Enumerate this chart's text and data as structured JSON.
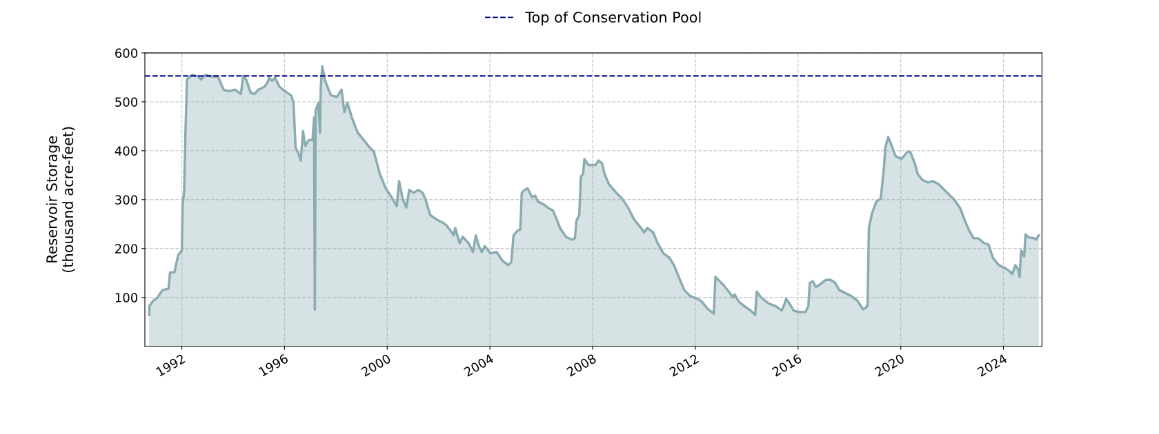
{
  "chart_data": {
    "type": "area",
    "ylabel": "Reservoir Storage\n(thousand acre-feet)",
    "x": [
      1990.73,
      1990.74,
      1990.9,
      1991.05,
      1991.25,
      1991.48,
      1991.54,
      1991.71,
      1991.77,
      1991.86,
      1992.0,
      1992.03,
      1992.09,
      1992.14,
      1992.2,
      1992.4,
      1992.63,
      1992.75,
      1992.92,
      1993.12,
      1993.41,
      1993.55,
      1993.64,
      1993.84,
      1994.07,
      1994.3,
      1994.39,
      1994.5,
      1994.68,
      1994.82,
      1994.99,
      1995.22,
      1995.34,
      1995.4,
      1995.51,
      1995.63,
      1995.8,
      1996.09,
      1996.26,
      1996.35,
      1996.43,
      1996.58,
      1996.63,
      1996.72,
      1996.81,
      1996.95,
      1997.09,
      1997.15,
      1997.18,
      1997.21,
      1997.32,
      1997.38,
      1997.41,
      1997.47,
      1997.58,
      1997.81,
      1998.04,
      1998.22,
      1998.33,
      1998.45,
      1998.62,
      1998.85,
      1999.08,
      1999.31,
      1999.48,
      1999.71,
      1999.94,
      2000.17,
      2000.37,
      2000.46,
      2000.6,
      2000.74,
      2000.86,
      2001.03,
      2001.21,
      2001.38,
      2001.5,
      2001.67,
      2001.9,
      2002.13,
      2002.3,
      2002.47,
      2002.59,
      2002.65,
      2002.82,
      2002.94,
      2003.17,
      2003.34,
      2003.45,
      2003.57,
      2003.68,
      2003.8,
      2004.03,
      2004.26,
      2004.49,
      2004.72,
      2004.83,
      2004.92,
      2005.06,
      2005.18,
      2005.24,
      2005.35,
      2005.47,
      2005.64,
      2005.76,
      2005.87,
      2006.1,
      2006.33,
      2006.45,
      2006.62,
      2006.73,
      2006.96,
      2007.19,
      2007.31,
      2007.37,
      2007.48,
      2007.54,
      2007.63,
      2007.68,
      2007.83,
      2007.94,
      2008.12,
      2008.23,
      2008.37,
      2008.46,
      2008.63,
      2008.92,
      2009.15,
      2009.38,
      2009.61,
      2009.84,
      2010.01,
      2010.13,
      2010.36,
      2010.53,
      2010.76,
      2010.99,
      2011.17,
      2011.4,
      2011.57,
      2011.8,
      2012.09,
      2012.26,
      2012.49,
      2012.72,
      2012.78,
      2012.95,
      2013.12,
      2013.3,
      2013.47,
      2013.53,
      2013.7,
      2013.99,
      2014.16,
      2014.33,
      2014.39,
      2014.56,
      2014.85,
      2015.14,
      2015.37,
      2015.48,
      2015.54,
      2015.66,
      2015.83,
      2016.06,
      2016.29,
      2016.4,
      2016.46,
      2016.58,
      2016.69,
      2016.86,
      2017.09,
      2017.27,
      2017.44,
      2017.61,
      2017.84,
      2018.07,
      2018.3,
      2018.53,
      2018.65,
      2018.71,
      2018.76,
      2018.88,
      2019.05,
      2019.22,
      2019.34,
      2019.4,
      2019.51,
      2019.63,
      2019.8,
      2020.03,
      2020.26,
      2020.37,
      2020.55,
      2020.66,
      2020.83,
      2021.06,
      2021.24,
      2021.47,
      2021.64,
      2021.87,
      2022.1,
      2022.33,
      2022.5,
      2022.67,
      2022.84,
      2023.02,
      2023.25,
      2023.42,
      2023.59,
      2023.82,
      2024.06,
      2024.23,
      2024.35,
      2024.46,
      2024.58,
      2024.63,
      2024.69,
      2024.81,
      2024.86,
      2024.98,
      2025.21,
      2025.26,
      2025.38
    ],
    "series": [
      {
        "color": "#8aabb1",
        "values": [
          64,
          83,
          94,
          100,
          115,
          118,
          151,
          151,
          166,
          187,
          196,
          290,
          317,
          437,
          546,
          555,
          552,
          546,
          555,
          552,
          552,
          534,
          524,
          522,
          525,
          516,
          553,
          546,
          519,
          516,
          525,
          531,
          540,
          549,
          543,
          549,
          531,
          519,
          513,
          498,
          407,
          389,
          380,
          440,
          410,
          422,
          422,
          468,
          75,
          482,
          498,
          437,
          528,
          573,
          543,
          513,
          510,
          525,
          479,
          498,
          468,
          437,
          422,
          407,
          398,
          353,
          323,
          305,
          287,
          338,
          302,
          284,
          320,
          314,
          320,
          314,
          299,
          269,
          260,
          254,
          248,
          236,
          227,
          242,
          211,
          224,
          211,
          193,
          227,
          205,
          193,
          205,
          190,
          193,
          175,
          166,
          172,
          227,
          236,
          239,
          314,
          320,
          323,
          305,
          308,
          296,
          290,
          281,
          278,
          257,
          242,
          224,
          218,
          221,
          257,
          269,
          347,
          353,
          383,
          371,
          371,
          371,
          380,
          374,
          353,
          332,
          314,
          302,
          284,
          260,
          245,
          233,
          242,
          233,
          211,
          190,
          181,
          166,
          136,
          115,
          103,
          97,
          91,
          76,
          67,
          142,
          133,
          124,
          112,
          100,
          106,
          91,
          79,
          73,
          64,
          112,
          100,
          88,
          82,
          73,
          88,
          97,
          88,
          73,
          70,
          70,
          82,
          130,
          133,
          121,
          127,
          136,
          136,
          130,
          115,
          109,
          103,
          94,
          76,
          79,
          85,
          242,
          272,
          296,
          302,
          362,
          407,
          428,
          413,
          389,
          383,
          398,
          398,
          374,
          353,
          341,
          335,
          338,
          332,
          323,
          311,
          299,
          281,
          257,
          236,
          221,
          221,
          211,
          208,
          181,
          166,
          160,
          154,
          148,
          166,
          157,
          142,
          196,
          184,
          229,
          223,
          221,
          218,
          227
        ]
      }
    ],
    "ylim": [
      0,
      600
    ],
    "yticks": [
      100,
      200,
      300,
      400,
      500,
      600
    ],
    "xlim": [
      1990.56,
      2025.5
    ],
    "xticks": [
      1992,
      1996,
      2000,
      2004,
      2008,
      2012,
      2016,
      2020,
      2024
    ],
    "ref_lines": [
      {
        "axis": "y",
        "value": 553,
        "label": "Top of Conservation Pool",
        "color": "#00008b",
        "line_style": "dashed"
      }
    ],
    "grid": true,
    "legend": "top"
  }
}
